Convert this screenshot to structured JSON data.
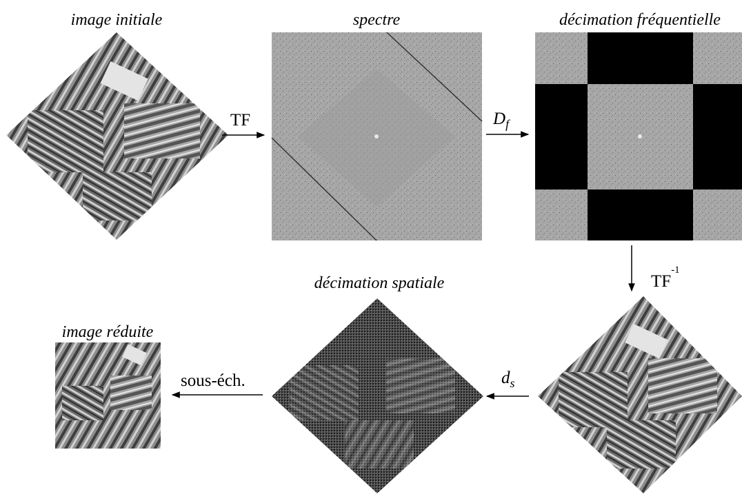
{
  "titles": {
    "initial": "image initiale",
    "spectrum": "spectre",
    "freq_decimation": "décimation fréquentielle",
    "spatial_decimation": "décimation spatiale",
    "reduced": "image réduite"
  },
  "operators": {
    "tf": "TF",
    "df_main": "D",
    "df_sub": "f",
    "tf_inv_main": "TF",
    "tf_inv_sup": "-1",
    "ds_main": "d",
    "ds_sub": "s",
    "subsample": "sous-éch."
  },
  "colors": {
    "black": "#000000",
    "spectrum_gray": "#a4a4a4",
    "field_dark": "#4a4a4a",
    "field_light": "#bdbdbd"
  }
}
